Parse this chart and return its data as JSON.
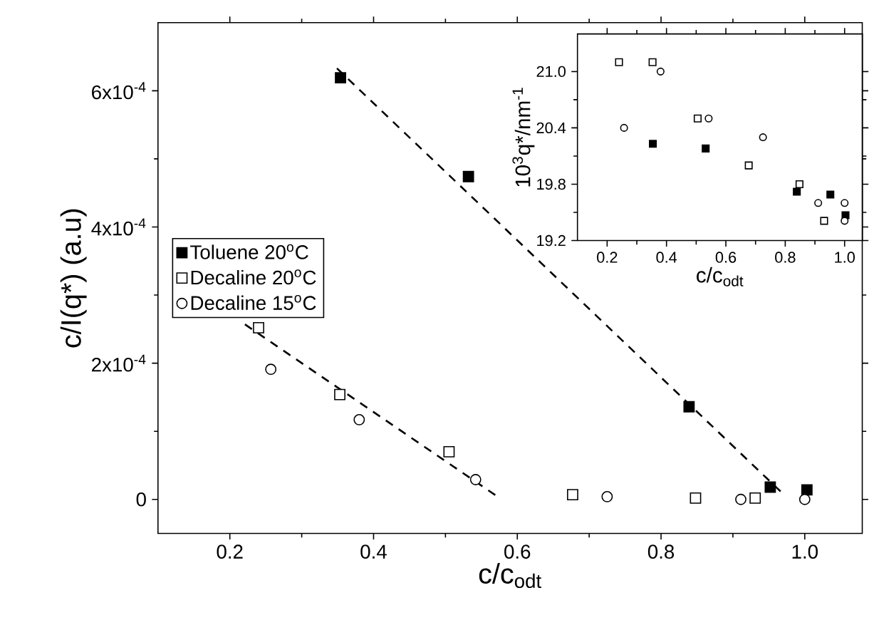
{
  "chart_data": [
    {
      "type": "scatter",
      "xlabel": "c/c$_{odt}$",
      "ylabel": "c/I(q*) (a.u)",
      "xlim": [
        0.1,
        1.08
      ],
      "ylim": [
        -5e-05,
        0.0007
      ],
      "xticks": [
        0.2,
        0.4,
        0.6,
        0.8,
        {
          "value": 1.0,
          "label": "1.0"
        }
      ],
      "yticks": [
        0,
        {
          "value": 0.0002,
          "label": "2x10$^{-4}$"
        },
        {
          "value": 0.0004,
          "label": "4x10$^{-4}$"
        },
        {
          "value": 0.0006,
          "label": "6x10$^{-4}$"
        }
      ],
      "legend": "left",
      "grid": false,
      "series": [
        {
          "name": "Toluene  20$^{o}$C",
          "color": "#000000",
          "marker": "square",
          "x": [
            0.354,
            0.532,
            0.839,
            0.952,
            1.003
          ],
          "values": [
            0.000619,
            0.000474,
            0.000136,
            1.8e-05,
            1.4e-05
          ]
        },
        {
          "name": "Decaline 20$^{o}$C",
          "color": "#ffffff",
          "marker": "square",
          "x": [
            0.24,
            0.353,
            0.505,
            0.677,
            0.848,
            0.931
          ],
          "values": [
            0.000252,
            0.000154,
            7e-05,
            7e-06,
            2e-06,
            2e-06
          ]
        },
        {
          "name": "Decaline 15$^{o}$C",
          "color": "#ffffff",
          "marker": "circle",
          "x": [
            0.257,
            0.38,
            0.542,
            0.725,
            0.911,
            1.0
          ],
          "values": [
            0.000191,
            0.000117,
            2.9e-05,
            4e-06,
            0,
            0
          ]
        },
        {
          "type": "line",
          "color": "#000000",
          "marker": "none",
          "line_style": "dashed",
          "x": [
            0.349,
            0.972
          ],
          "values": [
            0.000633,
            6e-06
          ]
        },
        {
          "type": "line",
          "color": "#000000",
          "marker": "none",
          "line_style": "dashed",
          "x": [
            0.221,
            0.574
          ],
          "values": [
            0.000257,
            3e-06
          ]
        }
      ]
    },
    {
      "type": "scatter",
      "xlabel": "c/c$_{odt}$",
      "ylabel": "10$^{3}$q*/nm$^{-1}$",
      "xlim": [
        0.1,
        1.06
      ],
      "ylim": [
        19.2,
        21.4
      ],
      "xticks": [
        0.2,
        0.4,
        0.6,
        0.8,
        {
          "value": 1.0,
          "label": "1.0"
        }
      ],
      "yticks": [
        19.2,
        19.8,
        20.4,
        {
          "value": 21.0,
          "label": "21.0"
        }
      ],
      "grid": false,
      "series": [
        {
          "color": "#000000",
          "marker": "square",
          "x": [
            0.354,
            0.532,
            0.839,
            0.952,
            1.003
          ],
          "values": [
            20.23,
            20.18,
            19.72,
            19.69,
            19.47
          ]
        },
        {
          "color": "#ffffff",
          "marker": "square",
          "x": [
            0.24,
            0.353,
            0.505,
            0.677,
            0.848,
            0.931
          ],
          "values": [
            21.1,
            21.1,
            20.5,
            20.0,
            19.8,
            19.41
          ]
        },
        {
          "color": "#ffffff",
          "marker": "circle",
          "x": [
            0.257,
            0.38,
            0.542,
            0.725,
            0.911,
            1.0,
            1.0
          ],
          "values": [
            20.4,
            21.0,
            20.5,
            20.3,
            19.6,
            19.6,
            19.41
          ]
        }
      ]
    }
  ]
}
